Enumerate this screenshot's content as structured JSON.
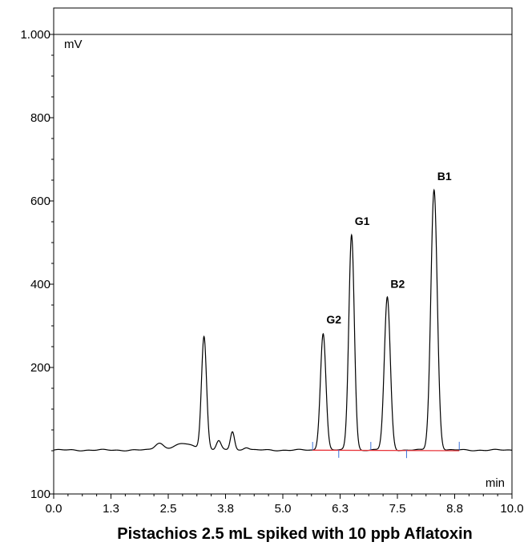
{
  "chart_data": {
    "type": "line",
    "title": "Pistachios 2.5 mL spiked with 10 ppb Aflatoxin",
    "xlabel": "min",
    "ylabel": "mV",
    "xlim": [
      0.0,
      10.0
    ],
    "ylim": [
      100,
      1000
    ],
    "x_ticks": [
      "0.0",
      "1.3",
      "2.5",
      "3.8",
      "5.0",
      "6.3",
      "7.5",
      "8.8",
      "10.0"
    ],
    "y_ticks": [
      {
        "value": 100,
        "label": "100"
      },
      {
        "value": 200,
        "label": "200"
      },
      {
        "value": 400,
        "label": "400"
      },
      {
        "value": 600,
        "label": "600"
      },
      {
        "value": 800,
        "label": "800"
      },
      {
        "value": 1000,
        "label": "1.000"
      }
    ],
    "series": [
      {
        "baseline": 1.5,
        "peaks": [
          {
            "rt": 2.3,
            "height": 17,
            "width": 0.09
          },
          {
            "rt": 2.85,
            "height": 15,
            "width": 0.22
          },
          {
            "rt": 3.28,
            "height": 272,
            "width": 0.055
          },
          {
            "rt": 3.6,
            "height": 22,
            "width": 0.05
          },
          {
            "rt": 3.9,
            "height": 45,
            "width": 0.045
          },
          {
            "rt": 4.2,
            "height": 7,
            "width": 0.06
          },
          {
            "rt": 5.88,
            "height": 281,
            "width": 0.06,
            "label": "G2"
          },
          {
            "rt": 6.5,
            "height": 518,
            "width": 0.06,
            "label": "G1"
          },
          {
            "rt": 7.28,
            "height": 367,
            "width": 0.065,
            "label": "B2"
          },
          {
            "rt": 8.3,
            "height": 625,
            "width": 0.07,
            "label": "B1"
          }
        ]
      }
    ],
    "integration_baseline": {
      "x": [
        5.65,
        8.85
      ],
      "y": [
        1.3,
        0.0
      ],
      "color": "#e8343a"
    },
    "integration_markers": [
      5.65,
      6.22,
      6.92,
      7.7,
      8.85
    ],
    "colors": {
      "trace": "#000000",
      "baseline": "#e8343a",
      "marker": "#3a6fd8"
    }
  }
}
